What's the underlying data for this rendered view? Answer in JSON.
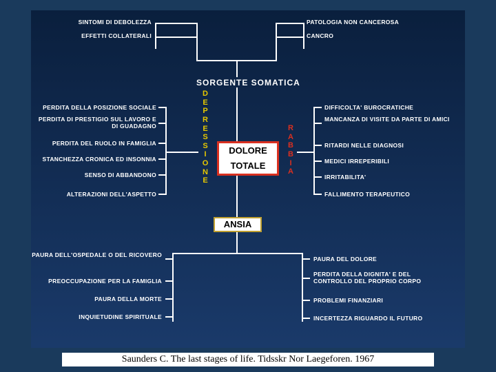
{
  "type": "concept-diagram",
  "background_outer": "#1a3a5c",
  "background_inner_gradient": [
    "#0a1f3d",
    "#1a3a6a"
  ],
  "text_color": "#ffffff",
  "center_box": {
    "lines": [
      "DOLORE",
      "TOTALE"
    ],
    "border_color": "#d93020",
    "fontsize": 13
  },
  "top_heading": {
    "text": "SORGENTE   SOMATICA",
    "fontsize": 12
  },
  "vertical_left": {
    "text": "DEPRESSIONE",
    "color": "#e6c800",
    "fontsize": 11
  },
  "vertical_right": {
    "text": "RABBIA",
    "color": "#d93020",
    "fontsize": 11
  },
  "ansia": {
    "text": "ANSIA",
    "border_color": "#c0a030",
    "fontsize": 13
  },
  "top_left": [
    {
      "text": "SINTOMI DI DEBOLEZZA"
    },
    {
      "text": "EFFETTI COLLATERALI"
    }
  ],
  "top_right": [
    {
      "text": "PATOLOGIA NON CANCEROSA"
    },
    {
      "text": "CANCRO"
    }
  ],
  "left_group": [
    {
      "text": "PERDITA DELLA POSIZIONE SOCIALE"
    },
    {
      "text": "PERDITA DI PRESTIGIO SUL LAVORO E DI\nGUADAGNO"
    },
    {
      "text": "PERDITA DEL RUOLO IN FAMIGLIA"
    },
    {
      "text": "STANCHEZZA CRONICA ED INSONNIA"
    },
    {
      "text": "SENSO DI ABBANDONO"
    },
    {
      "text": "ALTERAZIONI DELL'ASPETTO"
    }
  ],
  "right_group": [
    {
      "text": "DIFFICOLTA' BUROCRATICHE"
    },
    {
      "text": "MANCANZA DI VISITE DA PARTE DI\nAMICI"
    },
    {
      "text": "RITARDI NELLE DIAGNOSI"
    },
    {
      "text": "MEDICI IRREPERIBILI"
    },
    {
      "text": "IRRITABILITA'"
    },
    {
      "text": "FALLIMENTO TERAPEUTICO"
    }
  ],
  "bottom_left": [
    {
      "text": "PAURA DELL'OSPEDALE O DEL\nRICOVERO"
    },
    {
      "text": "PREOCCUPAZIONE PER LA FAMIGLIA"
    },
    {
      "text": "PAURA DELLA MORTE"
    },
    {
      "text": "INQUIETUDINE SPIRITUALE"
    }
  ],
  "bottom_right": [
    {
      "text": "PAURA DEL DOLORE"
    },
    {
      "text": "PERDITA DELLA DIGNITA' E DEL\nCONTROLLO DEL PROPRIO CORPO"
    },
    {
      "text": "PROBLEMI FINANZIARI"
    },
    {
      "text": "INCERTEZZA RIGUARDO IL FUTURO"
    }
  ],
  "citation": "Saunders C. The last stages of life. Tidsskr Nor Laegeforen. 1967",
  "line_color": "#ffffff",
  "fontsize_labels": 8.5
}
